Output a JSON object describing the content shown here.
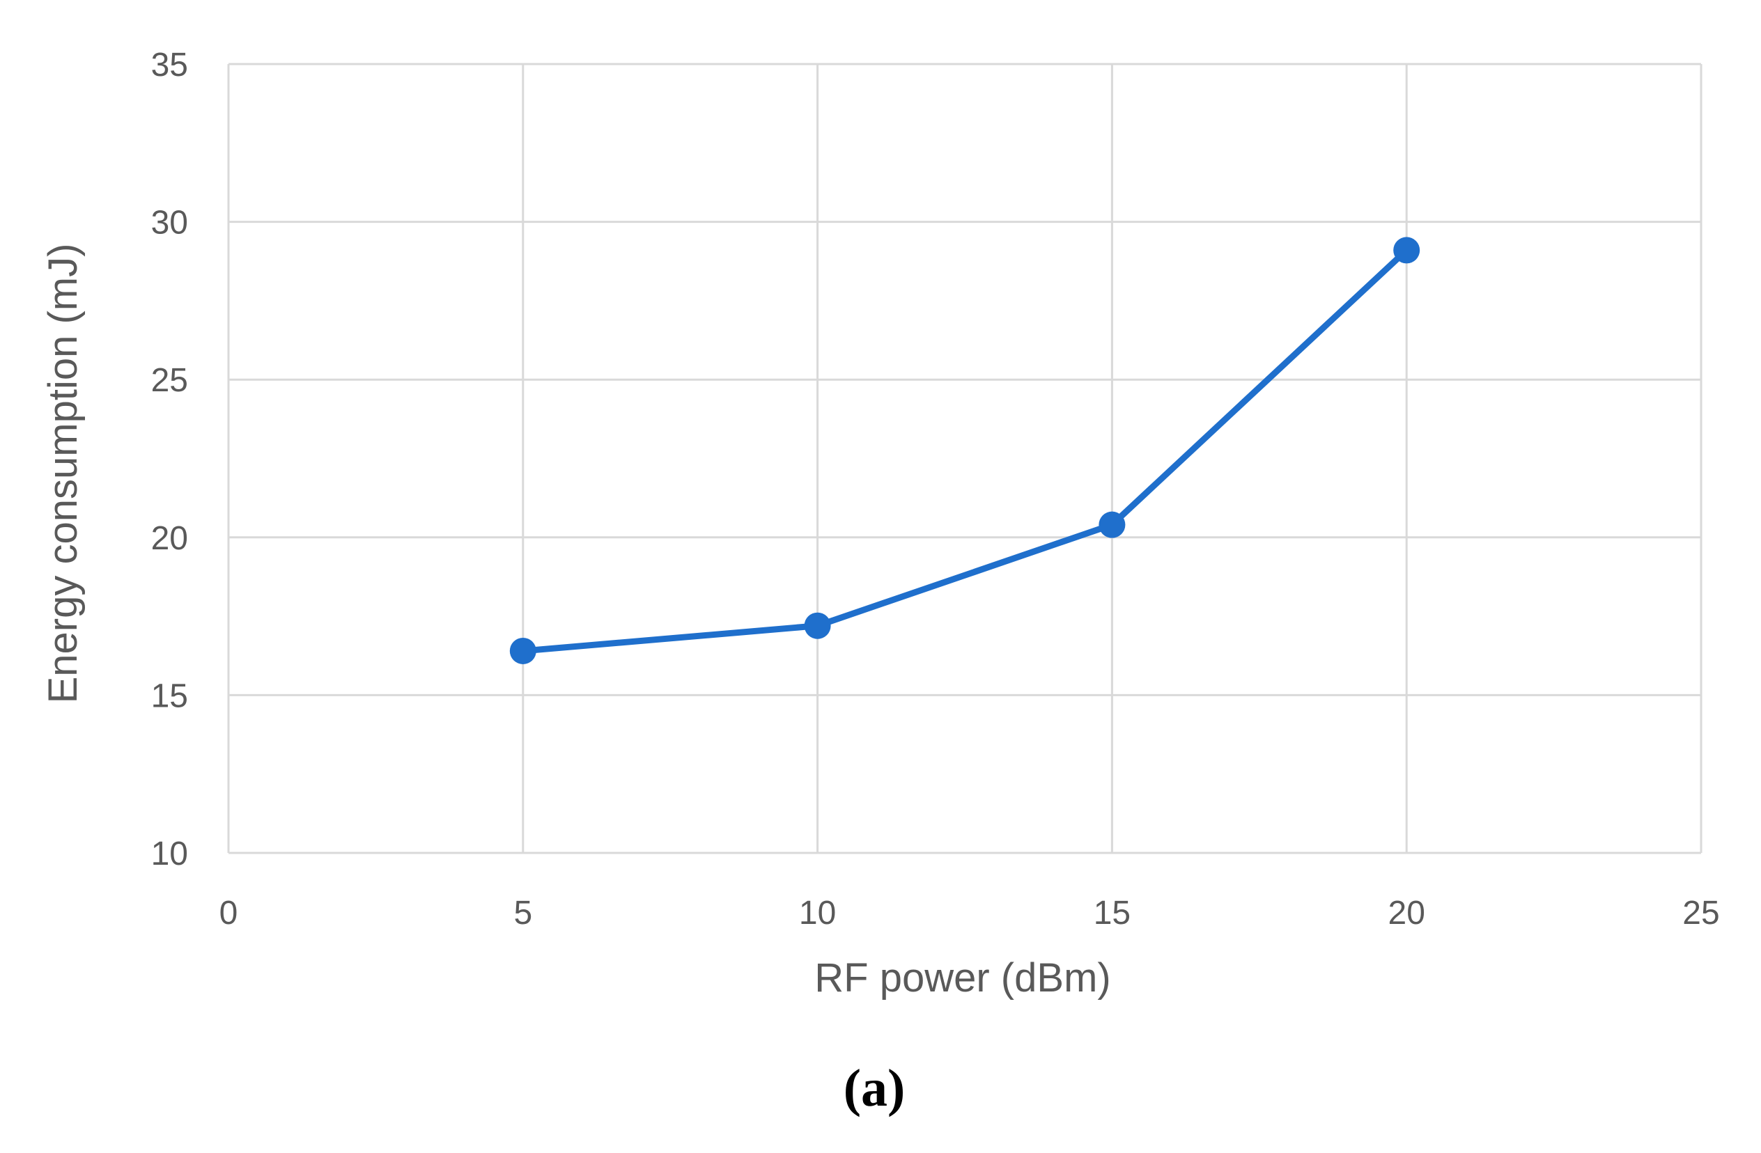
{
  "chart_data": {
    "type": "line",
    "x": [
      5,
      10,
      15,
      20
    ],
    "series": [
      {
        "values": [
          16.4,
          17.2,
          20.4,
          29.1
        ]
      }
    ],
    "xlabel": "RF power (dBm)",
    "ylabel": "Energy consumption (mJ)",
    "xlim": [
      0,
      25
    ],
    "ylim": [
      10,
      35
    ],
    "x_ticks": [
      "0",
      "5",
      "10",
      "15",
      "20",
      "25"
    ],
    "y_ticks": [
      "10",
      "15",
      "20",
      "25",
      "30",
      "35"
    ],
    "grid": true,
    "legend": "none",
    "colors": {
      "series": "#1f6fcc",
      "grid": "#d9d9d9",
      "text": "#595959"
    }
  },
  "panel_label": "(a)"
}
